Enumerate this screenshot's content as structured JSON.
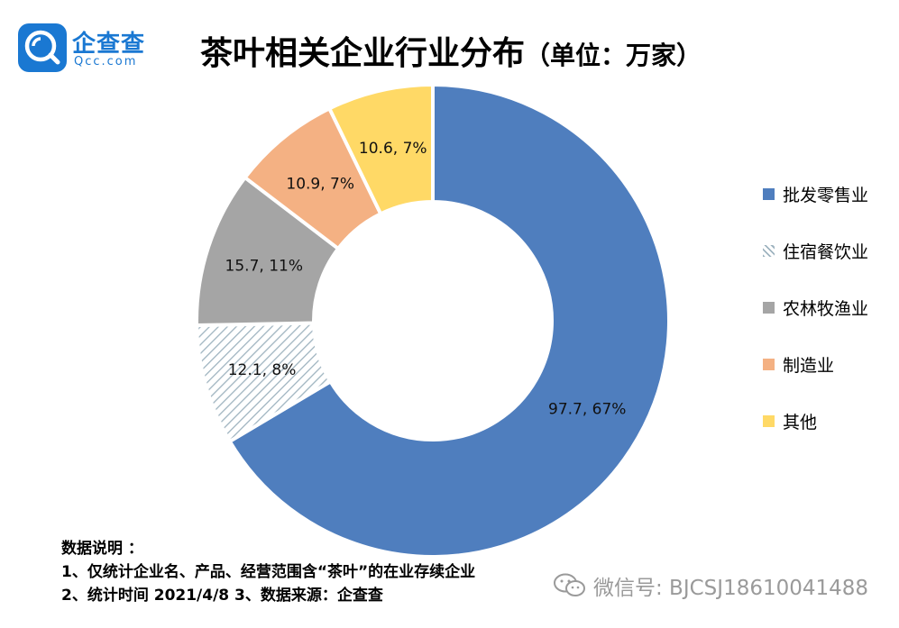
{
  "logo": {
    "name": "企查查",
    "domain": "Qcc.com",
    "color": "#1a78d2"
  },
  "header": {
    "title": "茶叶相关企业行业分布",
    "unit": "（单位：万家）"
  },
  "chart_data": {
    "type": "pie",
    "variant": "donut",
    "title": "茶叶相关企业行业分布（单位：万家）",
    "slices": [
      {
        "name": "批发零售业",
        "value": 97.7,
        "percent": 67,
        "label": "97.7, 67%",
        "color": "#4f7ebe",
        "pattern": "solid"
      },
      {
        "name": "住宿餐饮业",
        "value": 12.1,
        "percent": 8,
        "label": "12.1, 8%",
        "color": "#b9c9d3",
        "pattern": "hatched"
      },
      {
        "name": "农林牧渔业",
        "value": 15.7,
        "percent": 11,
        "label": "15.7, 11%",
        "color": "#a5a5a5",
        "pattern": "solid"
      },
      {
        "name": "制造业",
        "value": 10.9,
        "percent": 7,
        "label": "10.9, 7%",
        "color": "#f4b183",
        "pattern": "solid"
      },
      {
        "name": "其他",
        "value": 10.6,
        "percent": 7,
        "label": "10.6, 7%",
        "color": "#ffd966",
        "pattern": "solid"
      }
    ],
    "legend_position": "right"
  },
  "notes": {
    "heading": "数据说明 ：",
    "lines": [
      "1、仅统计企业名、产品、经营范围含“茶叶”的在业存续企业",
      "2、统计时间  2021/4/8      3、数据来源：企查查"
    ]
  },
  "watermark": {
    "text": "微信号: BJCSJ18610041488",
    "icon": "wechat-icon"
  }
}
